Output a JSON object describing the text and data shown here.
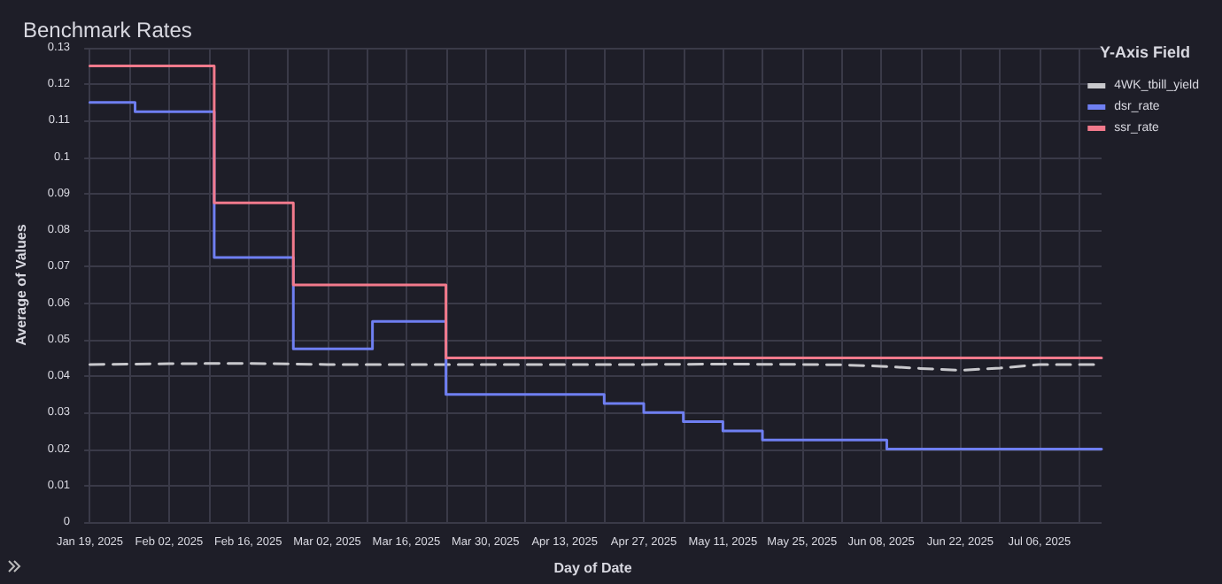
{
  "chart_data": {
    "type": "line",
    "title": "Benchmark Rates",
    "xlabel": "Day of Date",
    "ylabel": "Average of Values",
    "legend_title": "Y-Axis Field",
    "legend": "top right",
    "grid": true,
    "marker": "none",
    "xlim": [
      "2025-01-18",
      "2025-07-17"
    ],
    "xticks": [
      {
        "value": "2025-01-19",
        "label": "Jan 19, 2025"
      },
      {
        "value": "2025-01-26",
        "label": null
      },
      {
        "value": "2025-02-02",
        "label": "Feb 02, 2025"
      },
      {
        "value": "2025-02-09",
        "label": null
      },
      {
        "value": "2025-02-16",
        "label": "Feb 16, 2025"
      },
      {
        "value": "2025-02-23",
        "label": null
      },
      {
        "value": "2025-03-02",
        "label": "Mar 02, 2025"
      },
      {
        "value": "2025-03-09",
        "label": null
      },
      {
        "value": "2025-03-16",
        "label": "Mar 16, 2025"
      },
      {
        "value": "2025-03-23",
        "label": null
      },
      {
        "value": "2025-03-30",
        "label": "Mar 30, 2025"
      },
      {
        "value": "2025-04-06",
        "label": null
      },
      {
        "value": "2025-04-13",
        "label": "Apr 13, 2025"
      },
      {
        "value": "2025-04-20",
        "label": null
      },
      {
        "value": "2025-04-27",
        "label": "Apr 27, 2025"
      },
      {
        "value": "2025-05-04",
        "label": null
      },
      {
        "value": "2025-05-11",
        "label": "May 11, 2025"
      },
      {
        "value": "2025-05-18",
        "label": null
      },
      {
        "value": "2025-05-25",
        "label": "May 25, 2025"
      },
      {
        "value": "2025-06-01",
        "label": null
      },
      {
        "value": "2025-06-08",
        "label": "Jun 08, 2025"
      },
      {
        "value": "2025-06-15",
        "label": null
      },
      {
        "value": "2025-06-22",
        "label": "Jun 22, 2025"
      },
      {
        "value": "2025-06-29",
        "label": null
      },
      {
        "value": "2025-07-06",
        "label": "Jul 06, 2025"
      },
      {
        "value": "2025-07-13",
        "label": null
      }
    ],
    "ylim": [
      0,
      0.13
    ],
    "yticks": [
      0,
      0.01,
      0.02,
      0.03,
      0.04,
      0.05,
      0.06,
      0.07,
      0.08,
      0.09,
      0.1,
      0.11,
      0.12,
      0.13
    ],
    "series": [
      {
        "name": "4WK_tbill_yield",
        "color": "#c8c8cc",
        "line_style": "dashed",
        "x": [
          "2025-01-19",
          "2025-02-02",
          "2025-02-16",
          "2025-03-02",
          "2025-03-16",
          "2025-03-30",
          "2025-04-13",
          "2025-04-27",
          "2025-05-11",
          "2025-05-25",
          "2025-06-01",
          "2025-06-08",
          "2025-06-15",
          "2025-06-22",
          "2025-06-29",
          "2025-07-06",
          "2025-07-17"
        ],
        "values": [
          0.0432,
          0.0434,
          0.0435,
          0.0432,
          0.0432,
          0.0432,
          0.0432,
          0.0432,
          0.0433,
          0.0432,
          0.0431,
          0.0427,
          0.0421,
          0.0416,
          0.0422,
          0.0432,
          0.0432
        ]
      },
      {
        "name": "dsr_rate",
        "color": "#6f7ff2",
        "type": "step",
        "x": [
          "2025-01-19",
          "2025-01-27",
          "2025-02-10",
          "2025-02-24",
          "2025-03-10",
          "2025-03-23",
          "2025-04-20",
          "2025-04-27",
          "2025-05-04",
          "2025-05-11",
          "2025-05-18",
          "2025-06-09",
          "2025-07-17"
        ],
        "values": [
          0.115,
          0.1125,
          0.0725,
          0.0475,
          0.055,
          0.035,
          0.0325,
          0.03,
          0.0275,
          0.025,
          0.0225,
          0.02,
          0.02
        ]
      },
      {
        "name": "ssr_rate",
        "color": "#f27a8c",
        "type": "step",
        "x": [
          "2025-01-19",
          "2025-02-10",
          "2025-02-24",
          "2025-03-23",
          "2025-07-17"
        ],
        "values": [
          0.125,
          0.0875,
          0.065,
          0.045,
          0.045
        ]
      }
    ]
  }
}
